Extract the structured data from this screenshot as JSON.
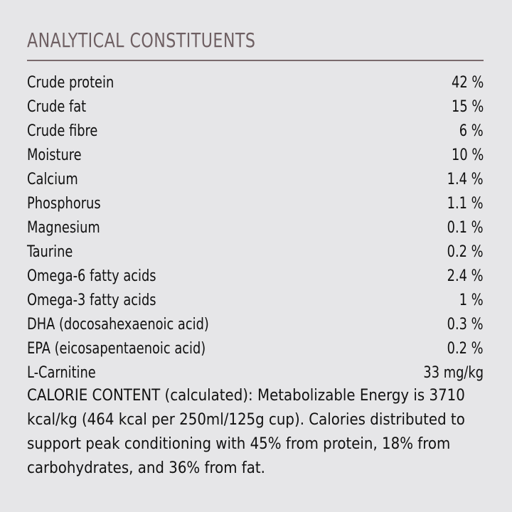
{
  "header": {
    "title": "ANALYTICAL CONSTITUENTS"
  },
  "table": {
    "rows": [
      [
        "Crude protein",
        "42 %"
      ],
      [
        "Crude fat",
        "15 %"
      ],
      [
        "Crude fibre",
        "6 %"
      ],
      [
        "Moisture",
        "10 %"
      ],
      [
        "Calcium",
        "1.4 %"
      ],
      [
        "Phosphorus",
        "1.1 %"
      ],
      [
        "Magnesium",
        "0.1 %"
      ],
      [
        "Taurine",
        "0.2 %"
      ],
      [
        "Omega-6 fatty acids",
        "2.4 %"
      ],
      [
        "Omega-3 fatty acids",
        "1 %"
      ],
      [
        "DHA (docosahexaenoic acid)",
        "0.3 %"
      ],
      [
        "EPA (eicosapentaenoic acid)",
        "0.2 %"
      ],
      [
        "L-Carnitine",
        "33 mg/kg"
      ]
    ]
  },
  "note": "CALORIE CONTENT (calculated): Metabolizable Energy is 3710 kcal/kg (464 kcal per 250ml/125g cup). Calories distributed to support peak conditioning with 45% from protein, 18% from carbohydrates, and 36% from fat."
}
